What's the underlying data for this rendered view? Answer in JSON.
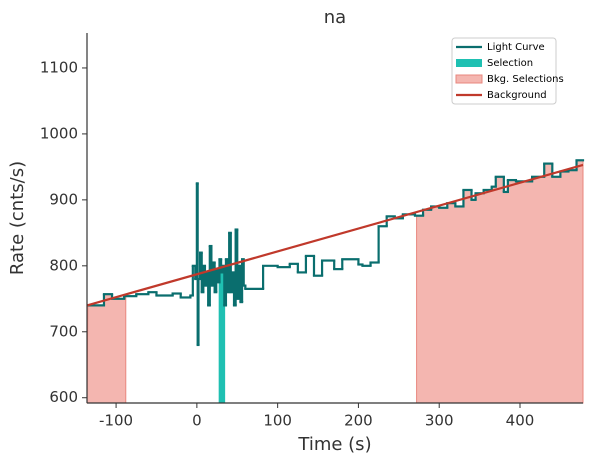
{
  "chart_data": {
    "type": "step",
    "title": "na",
    "xlabel": "Time (s)",
    "ylabel": "Rate (cnts/s)",
    "xlim": [
      -136,
      478
    ],
    "ylim": [
      592,
      1153
    ],
    "xticks": [
      -100,
      0,
      100,
      200,
      300,
      400
    ],
    "yticks": [
      600,
      700,
      800,
      900,
      1000,
      1100
    ],
    "light_curve": {
      "name": "Light Curve",
      "color": "#0a6e6e",
      "x": [
        -135,
        -115,
        -105,
        -90,
        -75,
        -60,
        -50,
        -30,
        -20,
        -8,
        -5,
        -2,
        0,
        1,
        2,
        4,
        6,
        8,
        10,
        12,
        14,
        16,
        18,
        20,
        22,
        24,
        26,
        28,
        30,
        32,
        34,
        36,
        38,
        40,
        42,
        44,
        46,
        48,
        50,
        52,
        54,
        56,
        58,
        60,
        82,
        100,
        115,
        125,
        135,
        145,
        155,
        170,
        180,
        200,
        205,
        215,
        225,
        235,
        245,
        255,
        270,
        280,
        290,
        300,
        310,
        320,
        330,
        340,
        345,
        355,
        365,
        370,
        380,
        385,
        395,
        415,
        430,
        440,
        450,
        460,
        470
      ],
      "values": [
        740,
        757,
        750,
        754,
        757,
        760,
        755,
        758,
        752,
        755,
        800,
        780,
        925,
        680,
        780,
        820,
        760,
        800,
        770,
        790,
        740,
        830,
        770,
        805,
        760,
        795,
        775,
        810,
        790,
        800,
        740,
        810,
        760,
        850,
        760,
        790,
        740,
        855,
        750,
        800,
        745,
        810,
        770,
        765,
        800,
        798,
        803,
        790,
        815,
        785,
        808,
        795,
        810,
        802,
        800,
        805,
        860,
        875,
        872,
        878,
        876,
        885,
        890,
        888,
        895,
        890,
        915,
        900,
        910,
        915,
        920,
        935,
        912,
        930,
        928,
        935,
        955,
        935,
        943,
        945,
        960
      ]
    },
    "selection": {
      "name": "Selection",
      "color": "#1fc0b2",
      "ranges": [
        [
          27,
          35
        ]
      ]
    },
    "bkg_selections": {
      "name": "Bkg. Selections",
      "color": "#f4b6b0",
      "edge": "#e8877e",
      "ranges": [
        [
          -136,
          -88
        ],
        [
          272,
          478
        ]
      ]
    },
    "background": {
      "name": "Background",
      "color": "#c0392b",
      "x": [
        -136,
        478
      ],
      "values": [
        740,
        953
      ]
    },
    "legend": "upper right"
  }
}
